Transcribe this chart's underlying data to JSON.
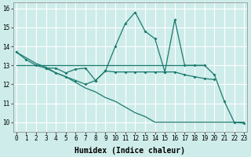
{
  "line1_x": [
    0,
    1,
    2,
    3,
    4,
    5,
    6,
    7,
    8,
    9,
    10,
    11,
    12,
    13,
    14,
    15,
    16,
    17,
    18,
    19,
    20,
    21,
    22,
    23
  ],
  "line1_y": [
    13.7,
    13.3,
    13.0,
    12.85,
    12.85,
    12.6,
    12.8,
    12.85,
    12.2,
    12.7,
    14.0,
    15.2,
    15.8,
    14.8,
    14.4,
    12.65,
    15.4,
    13.0,
    13.0,
    13.0,
    12.5,
    11.1,
    10.0,
    9.95
  ],
  "line2_x": [
    0,
    1,
    2,
    3,
    4,
    5,
    6,
    7,
    8,
    9,
    10,
    11,
    12,
    13,
    14,
    15,
    16,
    17,
    18,
    19
  ],
  "line2_y": [
    13.0,
    13.0,
    13.0,
    13.0,
    13.0,
    13.0,
    13.0,
    13.0,
    13.0,
    13.0,
    13.0,
    13.0,
    13.0,
    13.0,
    13.0,
    13.0,
    13.0,
    13.0,
    13.0,
    13.0
  ],
  "line3_x": [
    0,
    1,
    2,
    3,
    4,
    5,
    6,
    7,
    8,
    9,
    10,
    11,
    12,
    13,
    14,
    15,
    16,
    17,
    18,
    19,
    20,
    21,
    22,
    23
  ],
  "line3_y": [
    13.7,
    13.4,
    13.1,
    12.9,
    12.6,
    12.4,
    12.1,
    11.8,
    11.6,
    11.3,
    11.1,
    10.8,
    10.5,
    10.3,
    10.0,
    10.0,
    10.0,
    10.0,
    10.0,
    10.0,
    10.0,
    10.0,
    10.0,
    10.0
  ],
  "line4_x": [
    3,
    4,
    5,
    6,
    7,
    8,
    9,
    10,
    11,
    12,
    13,
    14,
    15,
    16,
    17,
    18,
    19,
    20
  ],
  "line4_y": [
    12.85,
    12.6,
    12.4,
    12.2,
    12.0,
    12.2,
    12.7,
    12.65,
    12.65,
    12.65,
    12.65,
    12.65,
    12.65,
    12.65,
    12.5,
    12.4,
    12.3,
    12.25
  ],
  "xlim": [
    -0.3,
    23.3
  ],
  "ylim": [
    9.5,
    16.3
  ],
  "yticks": [
    10,
    11,
    12,
    13,
    14,
    15,
    16
  ],
  "xticks": [
    0,
    1,
    2,
    3,
    4,
    5,
    6,
    7,
    8,
    9,
    10,
    11,
    12,
    13,
    14,
    15,
    16,
    17,
    18,
    19,
    20,
    21,
    22,
    23
  ],
  "xlabel": "Humidex (Indice chaleur)",
  "bg_color": "#ceecea",
  "grid_color": "#ffffff",
  "line_color": "#1a7a6e",
  "tick_fontsize": 5.5,
  "label_fontsize": 7.0
}
